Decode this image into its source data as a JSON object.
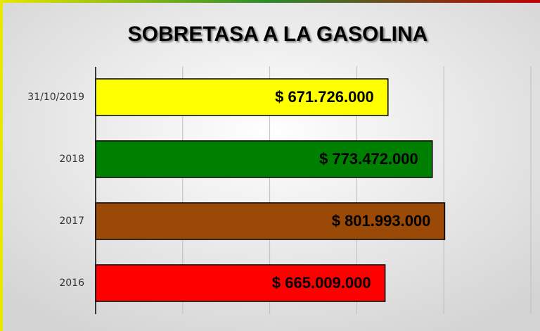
{
  "chart_data": {
    "type": "barh",
    "title": "SOBRETASA A LA GASOLINA",
    "categories": [
      "31/10/2019",
      "2018",
      "2017",
      "2016"
    ],
    "values": [
      671726000,
      773472000,
      801993000,
      665009000
    ],
    "value_labels": [
      "$ 671.726.000",
      "$ 773.472.000",
      "$ 801.993.000",
      "$ 665.009.000"
    ],
    "colors": [
      "#ffff00",
      "#008000",
      "#9a4a06",
      "#ff0000"
    ],
    "xlim": [
      0,
      1000000000
    ],
    "xticks": [
      0,
      200000000,
      400000000,
      600000000,
      800000000,
      1000000000
    ],
    "grid": true
  }
}
